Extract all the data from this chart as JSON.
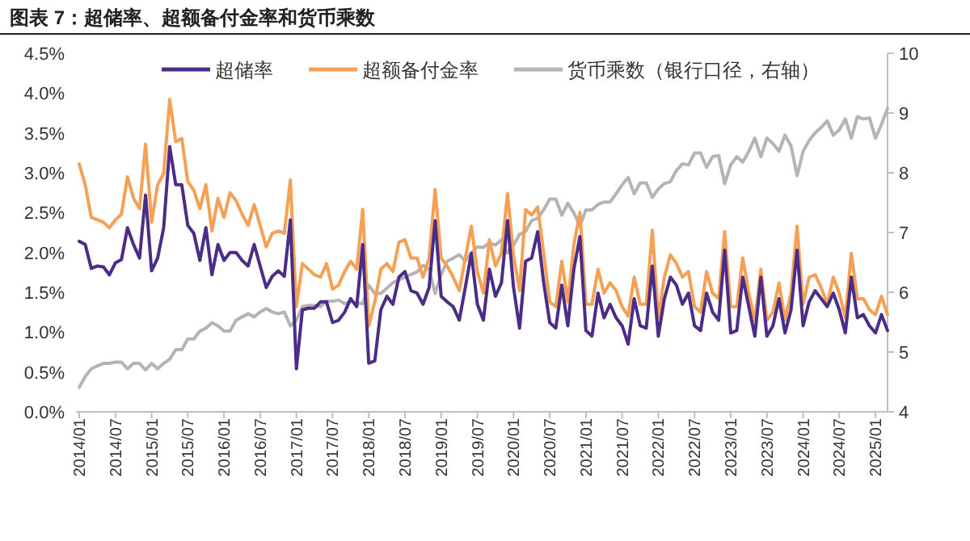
{
  "chart_data": {
    "type": "line",
    "title": "图表 7：超储率、超额备付金率和货币乘数",
    "legend": "top",
    "xlim": [
      "2014-01",
      "2025-03"
    ],
    "xticks": [
      {
        "value": "2014-01",
        "label": "2014/01"
      },
      {
        "value": "2014-07",
        "label": "2014/07"
      },
      {
        "value": "2015-01",
        "label": "2015/01"
      },
      {
        "value": "2015-07",
        "label": "2015/07"
      },
      {
        "value": "2016-01",
        "label": "2016/01"
      },
      {
        "value": "2016-07",
        "label": "2016/07"
      },
      {
        "value": "2017-01",
        "label": "2017/01"
      },
      {
        "value": "2017-07",
        "label": "2017/07"
      },
      {
        "value": "2018-01",
        "label": "2018/01"
      },
      {
        "value": "2018-07",
        "label": "2018/07"
      },
      {
        "value": "2019-01",
        "label": "2019/01"
      },
      {
        "value": "2019-07",
        "label": "2019/07"
      },
      {
        "value": "2020-01",
        "label": "2020/01"
      },
      {
        "value": "2020-07",
        "label": "2020/07"
      },
      {
        "value": "2021-01",
        "label": "2021/01"
      },
      {
        "value": "2021-07",
        "label": "2021/07"
      },
      {
        "value": "2022-01",
        "label": "2022/01"
      },
      {
        "value": "2022-07",
        "label": "2022/07"
      },
      {
        "value": "2023-01",
        "label": "2023/01"
      },
      {
        "value": "2023-07",
        "label": "2023/07"
      },
      {
        "value": "2024-01",
        "label": "2024/01"
      },
      {
        "value": "2024-07",
        "label": "2024/07"
      },
      {
        "value": "2025-01",
        "label": "2025/01"
      }
    ],
    "ylim": [
      0,
      4.5
    ],
    "yticks": [
      {
        "value": 0,
        "label": "0.0%"
      },
      {
        "value": 0.5,
        "label": "0.5%"
      },
      {
        "value": 1,
        "label": "1.0%"
      },
      {
        "value": 1.5,
        "label": "1.5%"
      },
      {
        "value": 2,
        "label": "2.0%"
      },
      {
        "value": 2.5,
        "label": "2.5%"
      },
      {
        "value": 3,
        "label": "3.0%"
      },
      {
        "value": 3.5,
        "label": "3.5%"
      },
      {
        "value": 4,
        "label": "4.0%"
      },
      {
        "value": 4.5,
        "label": "4.5%"
      }
    ],
    "y2lim": [
      4,
      10
    ],
    "y2ticks": [
      4,
      5,
      6,
      7,
      8,
      9,
      10
    ],
    "x": [
      "2014-01",
      "2014-02",
      "2014-03",
      "2014-04",
      "2014-05",
      "2014-06",
      "2014-07",
      "2014-08",
      "2014-09",
      "2014-10",
      "2014-11",
      "2014-12",
      "2015-01",
      "2015-02",
      "2015-03",
      "2015-04",
      "2015-05",
      "2015-06",
      "2015-07",
      "2015-08",
      "2015-09",
      "2015-10",
      "2015-11",
      "2015-12",
      "2016-01",
      "2016-02",
      "2016-03",
      "2016-04",
      "2016-05",
      "2016-06",
      "2016-07",
      "2016-08",
      "2016-09",
      "2016-10",
      "2016-11",
      "2016-12",
      "2017-01",
      "2017-02",
      "2017-03",
      "2017-04",
      "2017-05",
      "2017-06",
      "2017-07",
      "2017-08",
      "2017-09",
      "2017-10",
      "2017-11",
      "2017-12",
      "2018-01",
      "2018-02",
      "2018-03",
      "2018-04",
      "2018-05",
      "2018-06",
      "2018-07",
      "2018-08",
      "2018-09",
      "2018-10",
      "2018-11",
      "2018-12",
      "2019-01",
      "2019-02",
      "2019-03",
      "2019-04",
      "2019-05",
      "2019-06",
      "2019-07",
      "2019-08",
      "2019-09",
      "2019-10",
      "2019-11",
      "2019-12",
      "2020-01",
      "2020-02",
      "2020-03",
      "2020-04",
      "2020-05",
      "2020-06",
      "2020-07",
      "2020-08",
      "2020-09",
      "2020-10",
      "2020-11",
      "2020-12",
      "2021-01",
      "2021-02",
      "2021-03",
      "2021-04",
      "2021-05",
      "2021-06",
      "2021-07",
      "2021-08",
      "2021-09",
      "2021-10",
      "2021-11",
      "2021-12",
      "2022-01",
      "2022-02",
      "2022-03",
      "2022-04",
      "2022-05",
      "2022-06",
      "2022-07",
      "2022-08",
      "2022-09",
      "2022-10",
      "2022-11",
      "2022-12",
      "2023-01",
      "2023-02",
      "2023-03",
      "2023-04",
      "2023-05",
      "2023-06",
      "2023-07",
      "2023-08",
      "2023-09",
      "2023-10",
      "2023-11",
      "2023-12",
      "2024-01",
      "2024-02",
      "2024-03",
      "2024-04",
      "2024-05",
      "2024-06",
      "2024-07",
      "2024-08",
      "2024-09",
      "2024-10",
      "2024-11",
      "2024-12",
      "2025-01",
      "2025-02",
      "2025-03"
    ],
    "series": [
      {
        "name": "超储率",
        "color": "#4b2c86",
        "values": [
          2.14,
          2.1,
          1.8,
          1.83,
          1.82,
          1.72,
          1.87,
          1.91,
          2.31,
          2.1,
          1.93,
          2.72,
          1.77,
          1.93,
          2.31,
          3.33,
          2.85,
          2.85,
          2.34,
          2.24,
          1.9,
          2.31,
          1.72,
          2.1,
          1.9,
          2.0,
          2.0,
          1.9,
          1.83,
          2.1,
          1.83,
          1.56,
          1.7,
          1.77,
          1.7,
          2.41,
          0.54,
          1.28,
          1.3,
          1.3,
          1.38,
          1.38,
          1.12,
          1.15,
          1.25,
          1.42,
          1.32,
          2.1,
          0.61,
          0.64,
          1.28,
          1.45,
          1.35,
          1.69,
          1.76,
          1.52,
          1.49,
          1.35,
          1.56,
          2.4,
          1.45,
          1.38,
          1.32,
          1.15,
          1.56,
          1.99,
          1.35,
          1.15,
          1.79,
          1.45,
          1.62,
          2.4,
          1.56,
          1.05,
          1.89,
          1.93,
          2.26,
          1.62,
          1.12,
          1.05,
          1.59,
          1.08,
          1.79,
          2.2,
          1.02,
          0.95,
          1.49,
          1.18,
          1.35,
          1.18,
          1.08,
          0.85,
          1.42,
          1.08,
          1.05,
          1.83,
          0.95,
          1.42,
          1.69,
          1.59,
          1.35,
          1.49,
          1.08,
          1.02,
          1.49,
          1.25,
          1.15,
          2.03,
          0.99,
          1.02,
          1.69,
          1.32,
          0.95,
          1.69,
          0.95,
          1.08,
          1.42,
          0.99,
          1.28,
          2.03,
          1.08,
          1.38,
          1.52,
          1.42,
          1.32,
          1.49,
          1.28,
          0.99,
          1.69,
          1.18,
          1.22,
          1.08,
          0.99,
          1.22,
          1.02
        ]
      },
      {
        "name": "超额备付金率",
        "color": "#f4a055",
        "values": [
          3.11,
          2.85,
          2.44,
          2.41,
          2.38,
          2.31,
          2.41,
          2.48,
          2.95,
          2.68,
          2.55,
          3.36,
          2.38,
          2.85,
          2.99,
          3.92,
          3.39,
          3.43,
          2.89,
          2.78,
          2.55,
          2.85,
          2.27,
          2.68,
          2.44,
          2.75,
          2.65,
          2.48,
          2.34,
          2.6,
          2.34,
          2.07,
          2.24,
          2.27,
          2.24,
          2.91,
          1.32,
          1.86,
          1.79,
          1.72,
          1.69,
          1.86,
          1.54,
          1.59,
          1.76,
          1.89,
          1.79,
          2.54,
          1.08,
          1.38,
          1.79,
          1.86,
          1.76,
          2.13,
          2.16,
          1.93,
          1.93,
          1.69,
          1.93,
          2.79,
          1.93,
          1.83,
          1.69,
          1.52,
          1.93,
          2.33,
          1.76,
          1.49,
          2.16,
          1.83,
          1.99,
          2.74,
          1.96,
          1.52,
          2.54,
          2.47,
          2.57,
          1.99,
          1.38,
          1.32,
          1.89,
          1.38,
          2.1,
          2.5,
          1.35,
          1.35,
          1.79,
          1.49,
          1.62,
          1.52,
          1.32,
          1.2,
          1.69,
          1.35,
          1.35,
          2.28,
          1.18,
          1.69,
          1.97,
          1.86,
          1.69,
          1.76,
          1.32,
          1.25,
          1.76,
          1.49,
          1.42,
          2.26,
          1.32,
          1.32,
          1.93,
          1.49,
          1.15,
          1.79,
          1.15,
          1.25,
          1.62,
          1.15,
          1.49,
          2.33,
          1.35,
          1.69,
          1.72,
          1.56,
          1.35,
          1.69,
          1.49,
          1.18,
          1.99,
          1.42,
          1.42,
          1.28,
          1.22,
          1.45,
          1.22
        ]
      },
      {
        "name": "货币乘数（银行口径，右轴）",
        "color": "#b4b4b4",
        "axis": "y2",
        "values": [
          4.41,
          4.59,
          4.72,
          4.77,
          4.81,
          4.81,
          4.83,
          4.83,
          4.72,
          4.81,
          4.81,
          4.7,
          4.81,
          4.72,
          4.81,
          4.88,
          5.04,
          5.04,
          5.22,
          5.22,
          5.35,
          5.4,
          5.49,
          5.44,
          5.35,
          5.35,
          5.53,
          5.59,
          5.64,
          5.59,
          5.67,
          5.73,
          5.67,
          5.64,
          5.67,
          5.44,
          5.53,
          5.76,
          5.78,
          5.78,
          5.76,
          5.85,
          5.85,
          5.87,
          5.81,
          5.85,
          5.82,
          5.81,
          6.12,
          5.98,
          5.98,
          6.07,
          6.16,
          6.21,
          6.25,
          6.3,
          6.34,
          6.45,
          6.39,
          5.98,
          6.3,
          6.52,
          6.57,
          6.63,
          6.52,
          6.66,
          6.76,
          6.75,
          6.83,
          6.79,
          6.88,
          6.66,
          6.79,
          6.97,
          7.02,
          7.2,
          7.24,
          7.38,
          7.56,
          7.56,
          7.29,
          7.49,
          7.33,
          7.11,
          7.38,
          7.38,
          7.47,
          7.51,
          7.51,
          7.65,
          7.8,
          7.92,
          7.65,
          7.83,
          7.83,
          7.59,
          7.73,
          7.82,
          7.85,
          8.04,
          8.15,
          8.13,
          8.33,
          8.33,
          8.09,
          8.27,
          8.29,
          7.82,
          8.13,
          8.27,
          8.18,
          8.36,
          8.58,
          8.27,
          8.58,
          8.49,
          8.36,
          8.63,
          8.45,
          7.95,
          8.36,
          8.54,
          8.67,
          8.76,
          8.87,
          8.63,
          8.72,
          8.9,
          8.58,
          8.94,
          8.9,
          8.92,
          8.58,
          8.81,
          9.08
        ]
      }
    ]
  }
}
